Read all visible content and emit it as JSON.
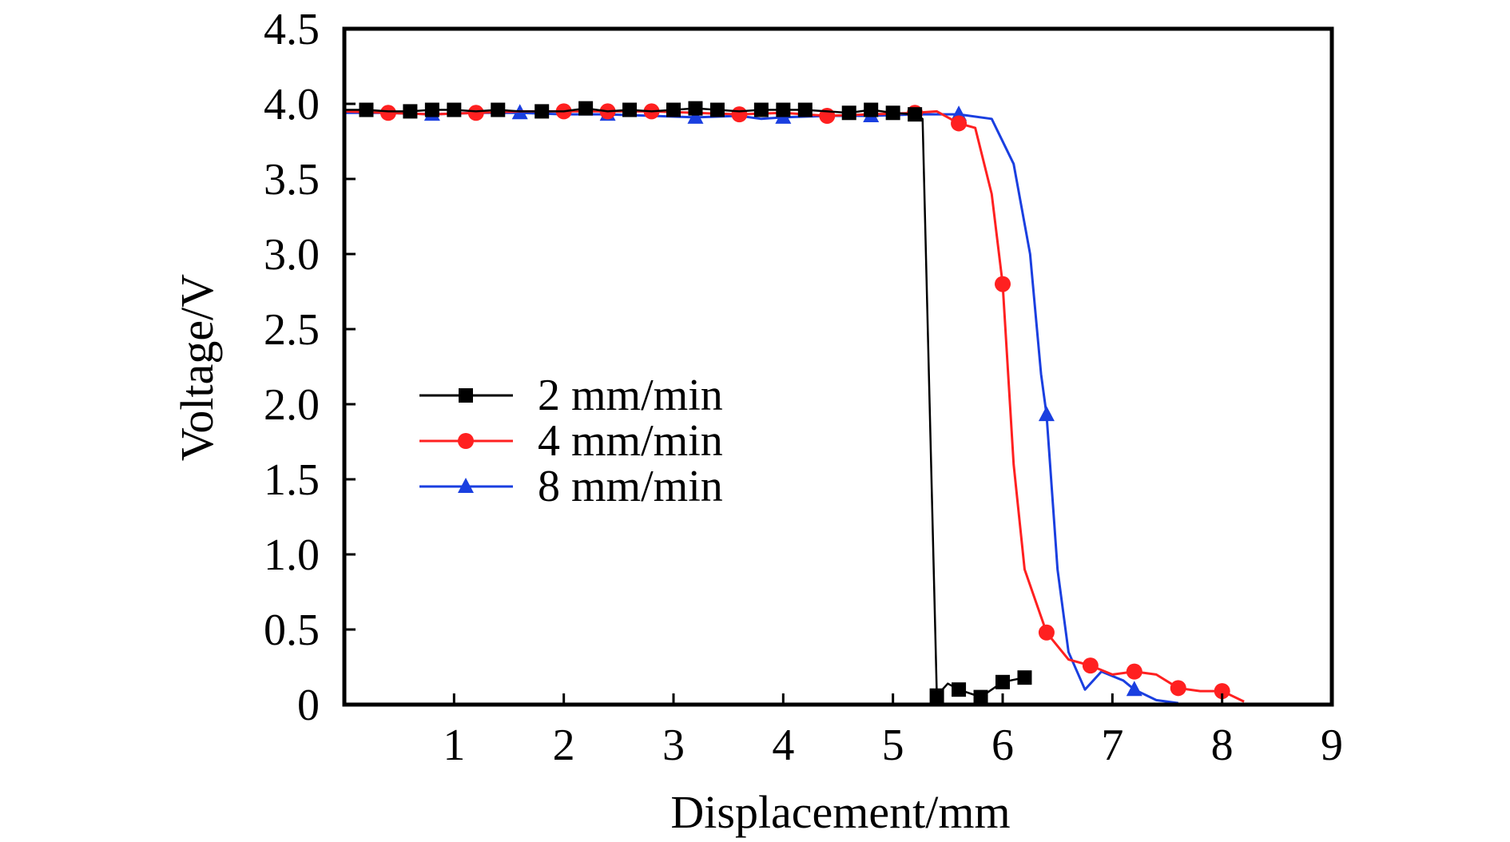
{
  "chart_data": {
    "type": "line",
    "title": "",
    "xlabel": "Displacement/mm",
    "ylabel": "Voltage/V",
    "xlim": [
      0,
      9
    ],
    "ylim": [
      0,
      4.5
    ],
    "xticks": [
      "1",
      "2",
      "3",
      "4",
      "5",
      "6",
      "7",
      "8",
      "9"
    ],
    "xtick_values": [
      1,
      2,
      3,
      4,
      5,
      6,
      7,
      8,
      9
    ],
    "yticks": [
      "0",
      "0.5",
      "1.0",
      "1.5",
      "2.0",
      "2.5",
      "3.0",
      "3.5",
      "4.0",
      "4.5"
    ],
    "ytick_values": [
      0,
      0.5,
      1,
      1.5,
      2,
      2.5,
      3,
      3.5,
      4,
      4.5
    ],
    "grid": false,
    "legend_placement": "center-left",
    "series": [
      {
        "name": "2 mm/min",
        "color": "#000000",
        "marker": "square",
        "line": [
          [
            0,
            3.96
          ],
          [
            0.2,
            3.96
          ],
          [
            0.4,
            3.95
          ],
          [
            0.6,
            3.95
          ],
          [
            0.8,
            3.96
          ],
          [
            1.0,
            3.96
          ],
          [
            1.2,
            3.95
          ],
          [
            1.4,
            3.96
          ],
          [
            1.6,
            3.95
          ],
          [
            1.8,
            3.95
          ],
          [
            2.0,
            3.95
          ],
          [
            2.2,
            3.97
          ],
          [
            2.4,
            3.95
          ],
          [
            2.6,
            3.96
          ],
          [
            2.8,
            3.95
          ],
          [
            3.0,
            3.96
          ],
          [
            3.2,
            3.97
          ],
          [
            3.4,
            3.96
          ],
          [
            3.6,
            3.95
          ],
          [
            3.8,
            3.96
          ],
          [
            4.0,
            3.96
          ],
          [
            4.2,
            3.96
          ],
          [
            4.4,
            3.95
          ],
          [
            4.6,
            3.94
          ],
          [
            4.8,
            3.96
          ],
          [
            5.0,
            3.94
          ],
          [
            5.2,
            3.93
          ],
          [
            5.27,
            3.9
          ],
          [
            5.4,
            0.06
          ],
          [
            5.5,
            0.14
          ],
          [
            5.6,
            0.1
          ],
          [
            5.8,
            0.05
          ],
          [
            6.0,
            0.15
          ],
          [
            6.2,
            0.18
          ]
        ],
        "markers": [
          [
            0.2,
            3.96
          ],
          [
            0.6,
            3.95
          ],
          [
            0.8,
            3.96
          ],
          [
            1.0,
            3.96
          ],
          [
            1.4,
            3.96
          ],
          [
            1.8,
            3.95
          ],
          [
            2.2,
            3.97
          ],
          [
            2.6,
            3.96
          ],
          [
            3.0,
            3.96
          ],
          [
            3.2,
            3.97
          ],
          [
            3.4,
            3.96
          ],
          [
            3.8,
            3.96
          ],
          [
            4.0,
            3.96
          ],
          [
            4.2,
            3.96
          ],
          [
            4.6,
            3.94
          ],
          [
            4.8,
            3.96
          ],
          [
            5.0,
            3.94
          ],
          [
            5.2,
            3.93
          ],
          [
            5.4,
            0.06
          ],
          [
            5.6,
            0.1
          ],
          [
            5.8,
            0.05
          ],
          [
            6.0,
            0.15
          ],
          [
            6.2,
            0.18
          ]
        ]
      },
      {
        "name": "4 mm/min",
        "color": "#ff2020",
        "marker": "circle",
        "line": [
          [
            0,
            3.95
          ],
          [
            0.4,
            3.94
          ],
          [
            0.8,
            3.93
          ],
          [
            1.2,
            3.94
          ],
          [
            1.6,
            3.95
          ],
          [
            2.0,
            3.95
          ],
          [
            2.4,
            3.95
          ],
          [
            2.8,
            3.95
          ],
          [
            3.2,
            3.94
          ],
          [
            3.6,
            3.93
          ],
          [
            4.0,
            3.94
          ],
          [
            4.4,
            3.92
          ],
          [
            4.8,
            3.93
          ],
          [
            5.2,
            3.94
          ],
          [
            5.4,
            3.95
          ],
          [
            5.6,
            3.87
          ],
          [
            5.75,
            3.84
          ],
          [
            5.9,
            3.4
          ],
          [
            6.0,
            2.8
          ],
          [
            6.1,
            1.6
          ],
          [
            6.2,
            0.9
          ],
          [
            6.4,
            0.48
          ],
          [
            6.6,
            0.3
          ],
          [
            6.8,
            0.26
          ],
          [
            7.0,
            0.2
          ],
          [
            7.2,
            0.22
          ],
          [
            7.4,
            0.2
          ],
          [
            7.6,
            0.11
          ],
          [
            7.8,
            0.09
          ],
          [
            8.0,
            0.09
          ],
          [
            8.2,
            0.02
          ]
        ],
        "markers": [
          [
            0.4,
            3.94
          ],
          [
            1.2,
            3.94
          ],
          [
            2.0,
            3.95
          ],
          [
            2.4,
            3.95
          ],
          [
            2.8,
            3.95
          ],
          [
            3.6,
            3.93
          ],
          [
            4.4,
            3.92
          ],
          [
            5.2,
            3.94
          ],
          [
            5.6,
            3.87
          ],
          [
            6.0,
            2.8
          ],
          [
            6.4,
            0.48
          ],
          [
            6.8,
            0.26
          ],
          [
            7.2,
            0.22
          ],
          [
            7.6,
            0.11
          ],
          [
            8.0,
            0.09
          ]
        ]
      },
      {
        "name": "8 mm/min",
        "color": "#1a3fe0",
        "marker": "triangle",
        "line": [
          [
            0,
            3.94
          ],
          [
            0.4,
            3.94
          ],
          [
            0.8,
            3.93
          ],
          [
            1.2,
            3.94
          ],
          [
            1.6,
            3.94
          ],
          [
            2.0,
            3.93
          ],
          [
            2.4,
            3.93
          ],
          [
            2.8,
            3.92
          ],
          [
            3.2,
            3.91
          ],
          [
            3.6,
            3.92
          ],
          [
            3.8,
            3.9
          ],
          [
            4.0,
            3.91
          ],
          [
            4.4,
            3.92
          ],
          [
            4.8,
            3.92
          ],
          [
            5.2,
            3.93
          ],
          [
            5.6,
            3.93
          ],
          [
            5.9,
            3.9
          ],
          [
            6.1,
            3.6
          ],
          [
            6.25,
            3.0
          ],
          [
            6.35,
            2.2
          ],
          [
            6.4,
            1.93
          ],
          [
            6.5,
            0.9
          ],
          [
            6.6,
            0.35
          ],
          [
            6.75,
            0.1
          ],
          [
            6.9,
            0.22
          ],
          [
            7.1,
            0.16
          ],
          [
            7.2,
            0.1
          ],
          [
            7.4,
            0.03
          ],
          [
            7.6,
            0.01
          ]
        ],
        "markers": [
          [
            0.8,
            3.93
          ],
          [
            1.6,
            3.94
          ],
          [
            2.4,
            3.93
          ],
          [
            3.2,
            3.91
          ],
          [
            4.0,
            3.91
          ],
          [
            4.8,
            3.92
          ],
          [
            5.6,
            3.93
          ],
          [
            6.4,
            1.93
          ],
          [
            7.2,
            0.1
          ]
        ]
      }
    ]
  }
}
